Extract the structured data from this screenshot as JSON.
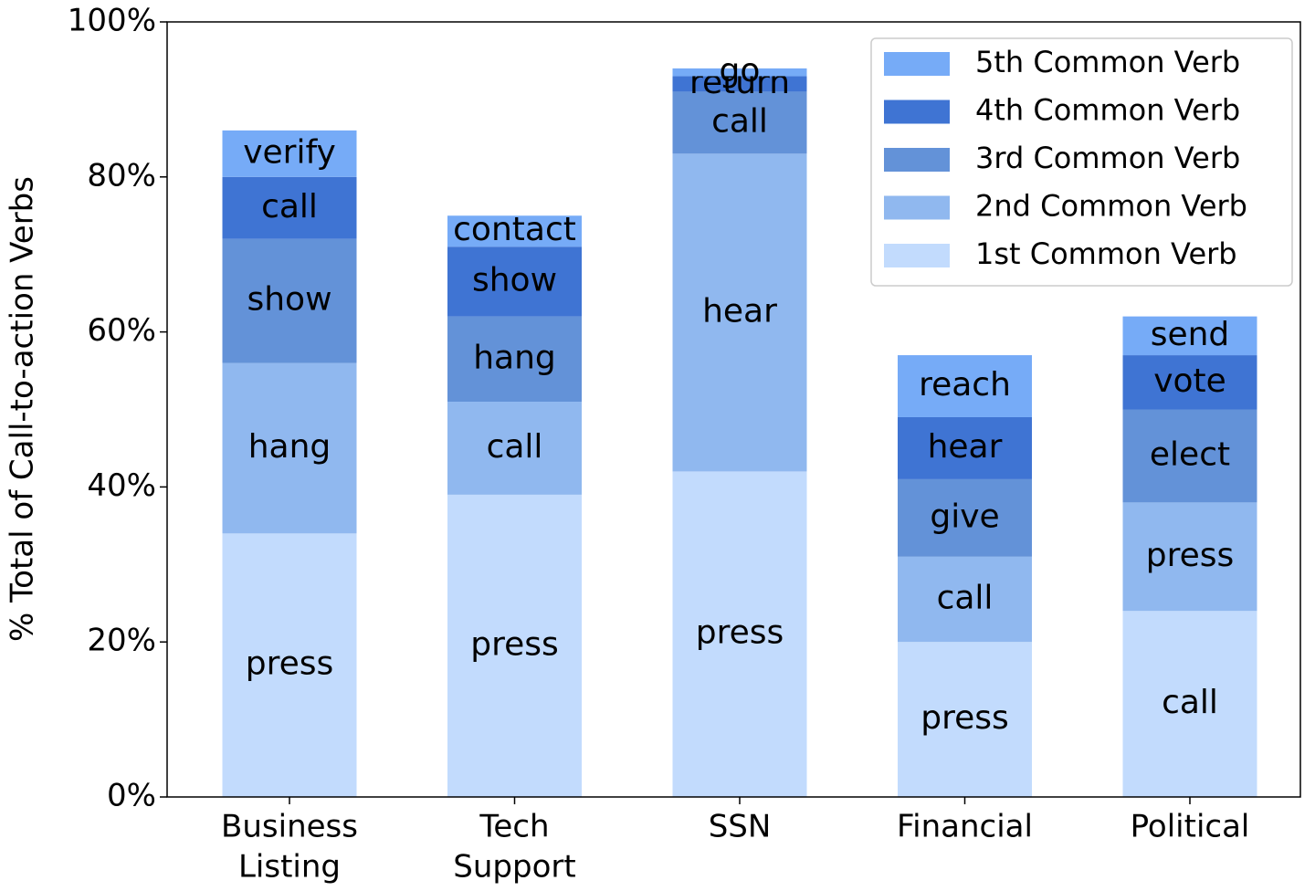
{
  "chart_data": {
    "type": "stacked_bar",
    "ylabel": "% Total of Call-to-action Verbs",
    "categories": [
      [
        "Business",
        "Listing"
      ],
      [
        "Tech",
        "Support"
      ],
      [
        "SSN"
      ],
      [
        "Financial"
      ],
      [
        "Political"
      ]
    ],
    "series": [
      {
        "name": "1st Common Verb",
        "color": "#c2dbfd",
        "values": [
          34,
          39,
          42,
          20,
          24
        ],
        "labels": [
          "press",
          "press",
          "press",
          "press",
          "call"
        ]
      },
      {
        "name": "2nd Common Verb",
        "color": "#90b8ef",
        "values": [
          22,
          12,
          41,
          11,
          14
        ],
        "labels": [
          "hang",
          "call",
          "hear",
          "call",
          "press"
        ]
      },
      {
        "name": "3rd Common Verb",
        "color": "#6392d8",
        "values": [
          16,
          11,
          8,
          10,
          12
        ],
        "labels": [
          "show",
          "hang",
          "call",
          "give",
          "elect"
        ]
      },
      {
        "name": "4th Common Verb",
        "color": "#3f74d3",
        "values": [
          8,
          9,
          2,
          8,
          7
        ],
        "labels": [
          "call",
          "show",
          "return",
          "hear",
          "vote"
        ]
      },
      {
        "name": "5th Common Verb",
        "color": "#76abf7",
        "values": [
          6,
          4,
          1,
          8,
          5
        ],
        "labels": [
          "verify",
          "contact",
          "go",
          "reach",
          "send"
        ]
      }
    ],
    "ylim": [
      0,
      100
    ],
    "yticks": [
      {
        "value": 0,
        "label": "0%"
      },
      {
        "value": 20,
        "label": "20%"
      },
      {
        "value": 40,
        "label": "40%"
      },
      {
        "value": 60,
        "label": "60%"
      },
      {
        "value": 80,
        "label": "80%"
      },
      {
        "value": 100,
        "label": "100%"
      }
    ],
    "legend": "upper right"
  }
}
